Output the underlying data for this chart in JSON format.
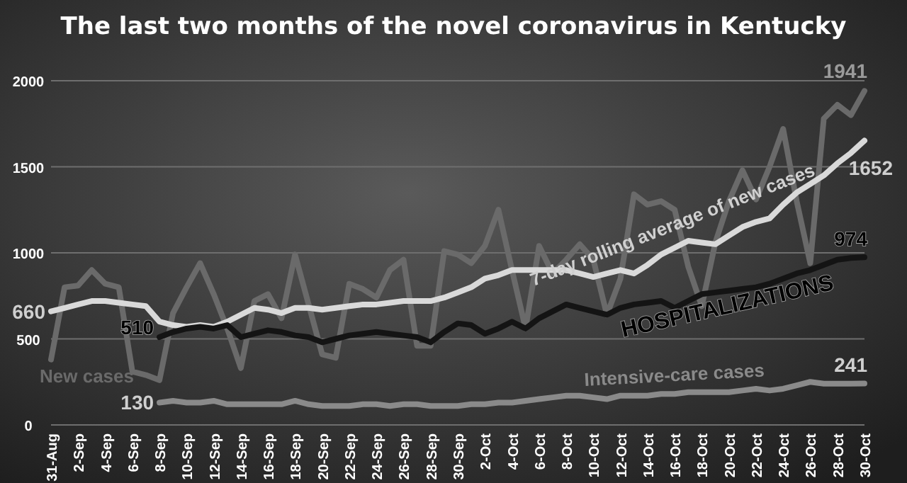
{
  "chart_data": {
    "type": "line",
    "title": "The last two months of the novel coronavirus  in Kentucky",
    "categories": [
      "31-Aug",
      null,
      "2-Sep",
      null,
      "4-Sep",
      null,
      "6-Sep",
      null,
      "8-Sep",
      null,
      "10-Sep",
      null,
      "12-Sep",
      null,
      "14-Sep",
      null,
      "16-Sep",
      null,
      "18-Sep",
      null,
      "20-Sep",
      null,
      "22-Sep",
      null,
      "24-Sep",
      null,
      "26-Sep",
      null,
      "28-Sep",
      null,
      "30-Sep",
      null,
      "2-Oct",
      null,
      "4-Oct",
      null,
      "6-Oct",
      null,
      "8-Oct",
      null,
      "10-Oct",
      null,
      "12-Oct",
      null,
      "14-Oct",
      null,
      "16-Oct",
      null,
      "18-Oct",
      null,
      "20-Oct",
      null,
      "22-Oct",
      null,
      "24-Oct",
      null,
      "26-Oct",
      null,
      "28-Oct",
      null,
      "30-Oct"
    ],
    "series": [
      {
        "name": "New cases",
        "color": "#6a6a6a",
        "values": [
          380,
          800,
          810,
          900,
          820,
          800,
          310,
          290,
          260,
          650,
          800,
          940,
          760,
          560,
          330,
          720,
          760,
          620,
          990,
          700,
          410,
          390,
          820,
          790,
          740,
          900,
          960,
          460,
          460,
          1010,
          990,
          940,
          1040,
          1250,
          900,
          560,
          1040,
          880,
          960,
          1050,
          960,
          640,
          850,
          1340,
          1280,
          1300,
          1250,
          920,
          690,
          1060,
          1300,
          1480,
          1310,
          1500,
          1720,
          1300,
          940,
          1780,
          1860,
          1800,
          1941
        ],
        "value_labels": [
          null,
          null,
          null,
          null,
          null,
          null,
          null,
          null,
          null,
          null,
          null,
          null,
          null,
          null,
          null,
          null,
          null,
          null,
          null,
          null,
          null,
          null,
          null,
          null,
          null,
          null,
          null,
          null,
          null,
          null,
          null,
          null,
          null,
          null,
          null,
          null,
          null,
          null,
          null,
          null,
          null,
          null,
          null,
          null,
          null,
          null,
          null,
          null,
          null,
          null,
          null,
          null,
          null,
          null,
          null,
          null,
          null,
          null,
          null,
          null,
          "1941"
        ]
      },
      {
        "name": "7-day rolling average of new cases",
        "color": "#d9d9d9",
        "values": [
          660,
          680,
          700,
          720,
          720,
          710,
          700,
          690,
          600,
          580,
          570,
          580,
          570,
          600,
          640,
          680,
          670,
          650,
          680,
          680,
          670,
          680,
          690,
          700,
          700,
          710,
          720,
          720,
          720,
          740,
          770,
          800,
          850,
          870,
          900,
          900,
          900,
          900,
          900,
          880,
          860,
          880,
          900,
          880,
          930,
          990,
          1030,
          1070,
          1060,
          1050,
          1100,
          1150,
          1180,
          1200,
          1280,
          1350,
          1400,
          1450,
          1520,
          1580,
          1652
        ],
        "value_labels": [
          "660",
          null,
          null,
          null,
          null,
          null,
          null,
          null,
          null,
          null,
          null,
          null,
          null,
          null,
          null,
          null,
          null,
          null,
          null,
          null,
          null,
          null,
          null,
          null,
          null,
          null,
          null,
          null,
          null,
          null,
          null,
          null,
          null,
          null,
          null,
          null,
          null,
          null,
          null,
          null,
          null,
          null,
          null,
          null,
          null,
          null,
          null,
          null,
          null,
          null,
          null,
          null,
          null,
          null,
          null,
          null,
          null,
          null,
          null,
          null,
          "1652"
        ]
      },
      {
        "name": "HOSPITALIZATIONS",
        "color": "#141414",
        "values": [
          null,
          null,
          null,
          null,
          null,
          null,
          null,
          null,
          510,
          540,
          560,
          570,
          560,
          580,
          510,
          530,
          550,
          540,
          520,
          510,
          480,
          500,
          520,
          530,
          540,
          530,
          520,
          510,
          480,
          540,
          590,
          580,
          530,
          560,
          600,
          560,
          620,
          660,
          700,
          680,
          660,
          640,
          680,
          700,
          710,
          720,
          680,
          720,
          760,
          770,
          780,
          790,
          800,
          820,
          850,
          880,
          900,
          930,
          960,
          970,
          974
        ],
        "value_labels": [
          null,
          null,
          null,
          null,
          null,
          null,
          null,
          null,
          "510",
          null,
          null,
          null,
          null,
          null,
          null,
          null,
          null,
          null,
          null,
          null,
          null,
          null,
          null,
          null,
          null,
          null,
          null,
          null,
          null,
          null,
          null,
          null,
          null,
          null,
          null,
          null,
          null,
          null,
          null,
          null,
          null,
          null,
          null,
          null,
          null,
          null,
          null,
          null,
          null,
          null,
          null,
          null,
          null,
          null,
          null,
          null,
          null,
          null,
          null,
          null,
          "974"
        ]
      },
      {
        "name": "Intensive-care cases",
        "color": "#8a8a8a",
        "values": [
          null,
          null,
          null,
          null,
          null,
          null,
          null,
          null,
          130,
          140,
          130,
          130,
          140,
          120,
          120,
          120,
          120,
          120,
          140,
          120,
          110,
          110,
          110,
          120,
          120,
          110,
          120,
          120,
          110,
          110,
          110,
          120,
          120,
          130,
          130,
          140,
          150,
          160,
          170,
          170,
          160,
          150,
          170,
          170,
          170,
          180,
          180,
          190,
          190,
          190,
          190,
          200,
          210,
          200,
          210,
          230,
          250,
          240,
          240,
          240,
          241
        ],
        "value_labels": [
          null,
          null,
          null,
          null,
          null,
          null,
          null,
          null,
          "130",
          null,
          null,
          null,
          null,
          null,
          null,
          null,
          null,
          null,
          null,
          null,
          null,
          null,
          null,
          null,
          null,
          null,
          null,
          null,
          null,
          null,
          null,
          null,
          null,
          null,
          null,
          null,
          null,
          null,
          null,
          null,
          null,
          null,
          null,
          null,
          null,
          null,
          null,
          null,
          null,
          null,
          null,
          null,
          null,
          null,
          null,
          null,
          null,
          null,
          null,
          null,
          "241"
        ]
      }
    ],
    "ylim": [
      0,
      2000
    ],
    "yticks": [
      0,
      500,
      1000,
      1500,
      2000
    ],
    "grid": "y",
    "marker": "none",
    "line_style": "solid"
  }
}
